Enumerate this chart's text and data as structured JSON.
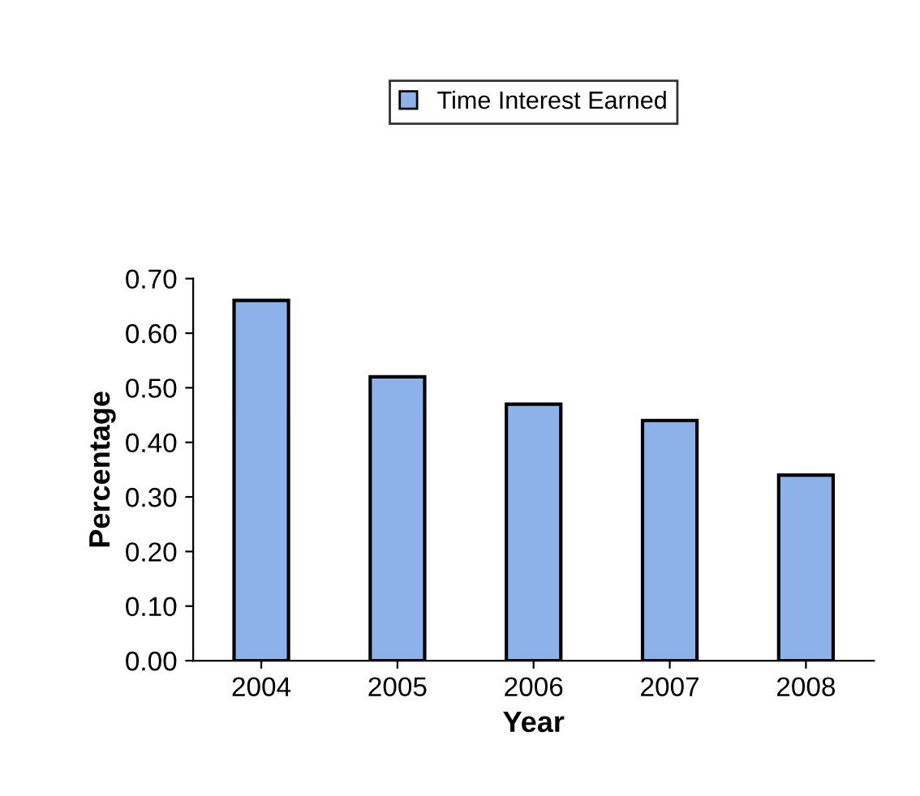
{
  "chart_data": {
    "type": "bar",
    "xlabel": "Year",
    "ylabel": "Percentage",
    "categories": [
      "2004",
      "2005",
      "2006",
      "2007",
      "2008"
    ],
    "series": [
      {
        "name": "Time Interest Earned",
        "color": "#8db2ea",
        "values": [
          0.66,
          0.52,
          0.47,
          0.44,
          0.34
        ]
      }
    ],
    "ylim": [
      0,
      0.7
    ],
    "yticks": [
      {
        "value": 0,
        "label": "0.00"
      },
      {
        "value": 0.1,
        "label": "0.10"
      },
      {
        "value": 0.2,
        "label": "0.20"
      },
      {
        "value": 0.3,
        "label": "0.30"
      },
      {
        "value": 0.4,
        "label": "0.40"
      },
      {
        "value": 0.5,
        "label": "0.50"
      },
      {
        "value": 0.6,
        "label": "0.60"
      },
      {
        "value": 0.7,
        "label": "0.70"
      }
    ],
    "legend": "top",
    "grid": false
  }
}
